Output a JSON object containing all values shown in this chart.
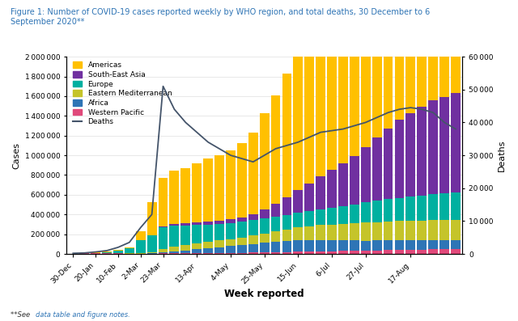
{
  "title": "Figure 1: Number of COVID-19 cases reported weekly by WHO region, and total deaths, 30 December to 6\nSeptember 2020**",
  "title_color": "#2E74B5",
  "xlabel": "Week reported",
  "ylabel_left": "Cases",
  "ylabel_right": "Deaths",
  "footnote_plain": "**See ",
  "footnote_link": "data table and figure notes.",
  "week_tick_labels": [
    "30-Dec",
    "20-Jan",
    "10-Feb",
    "2-Mar",
    "23-Mar",
    "13-Apr",
    "4-May",
    "25-May",
    "15-Jun",
    "6-Jul",
    "27-Jul",
    "17-Aug"
  ],
  "colors": {
    "americas": "#FFC000",
    "south_east_asia": "#7030A0",
    "europe": "#00B0A0",
    "eastern_med": "#C5C42A",
    "africa": "#2E75B6",
    "western_pacific": "#E0497A"
  },
  "deaths_color": "#44546A",
  "ylim_left": [
    0,
    2000000
  ],
  "ylim_right": [
    0,
    60000
  ],
  "background_color": "#FFFFFF",
  "americas": [
    1000,
    1500,
    2000,
    4000,
    6000,
    8000,
    90000,
    330000,
    490000,
    540000,
    560000,
    600000,
    640000,
    660000,
    700000,
    750000,
    830000,
    980000,
    1100000,
    1250000,
    1380000,
    1420000,
    1480000,
    1510000,
    1540000,
    1590000,
    1640000,
    1690000,
    1720000,
    1760000,
    1790000,
    1810000,
    1840000,
    1870000,
    1910000
  ],
  "south_east_asia": [
    0,
    0,
    0,
    0,
    0,
    0,
    1000,
    2000,
    8000,
    15000,
    20000,
    25000,
    28000,
    32000,
    38000,
    45000,
    60000,
    90000,
    130000,
    180000,
    230000,
    280000,
    330000,
    380000,
    430000,
    490000,
    560000,
    640000,
    720000,
    790000,
    850000,
    900000,
    950000,
    980000,
    1010000
  ],
  "europe": [
    200,
    500,
    2000,
    10000,
    30000,
    50000,
    130000,
    170000,
    220000,
    210000,
    195000,
    185000,
    175000,
    170000,
    162000,
    158000,
    155000,
    150000,
    148000,
    148000,
    150000,
    155000,
    162000,
    170000,
    180000,
    192000,
    205000,
    215000,
    225000,
    235000,
    245000,
    255000,
    265000,
    272000,
    280000
  ],
  "eastern_med": [
    0,
    0,
    0,
    500,
    1000,
    2000,
    8000,
    15000,
    38000,
    52000,
    58000,
    62000,
    65000,
    68000,
    72000,
    78000,
    85000,
    95000,
    105000,
    115000,
    128000,
    140000,
    152000,
    160000,
    168000,
    175000,
    182000,
    188000,
    193000,
    197000,
    200000,
    202000,
    204000,
    205000,
    206000
  ],
  "africa": [
    0,
    0,
    0,
    0,
    0,
    0,
    1000,
    2000,
    8000,
    18000,
    28000,
    38000,
    48000,
    58000,
    68000,
    78000,
    88000,
    98000,
    108000,
    115000,
    118000,
    118000,
    115000,
    112000,
    108000,
    105000,
    102000,
    100000,
    98000,
    96000,
    94000,
    92000,
    91000,
    90000,
    89000
  ],
  "western_pacific": [
    3000,
    5000,
    9000,
    8000,
    5000,
    4000,
    3000,
    3000,
    5000,
    6000,
    7000,
    8000,
    9000,
    10000,
    11000,
    12000,
    13000,
    15000,
    17000,
    19000,
    21000,
    23000,
    25000,
    27000,
    29000,
    31000,
    33000,
    36000,
    38000,
    40000,
    42000,
    44000,
    46000,
    48000,
    50000
  ],
  "deaths": [
    200,
    300,
    600,
    1000,
    2000,
    3500,
    8000,
    12000,
    51000,
    44000,
    40000,
    37000,
    34000,
    32000,
    30000,
    29000,
    28000,
    30000,
    32000,
    33000,
    34000,
    35500,
    37000,
    37500,
    38000,
    39000,
    40000,
    41500,
    43000,
    44000,
    44500,
    44000,
    43000,
    40000,
    38000
  ]
}
